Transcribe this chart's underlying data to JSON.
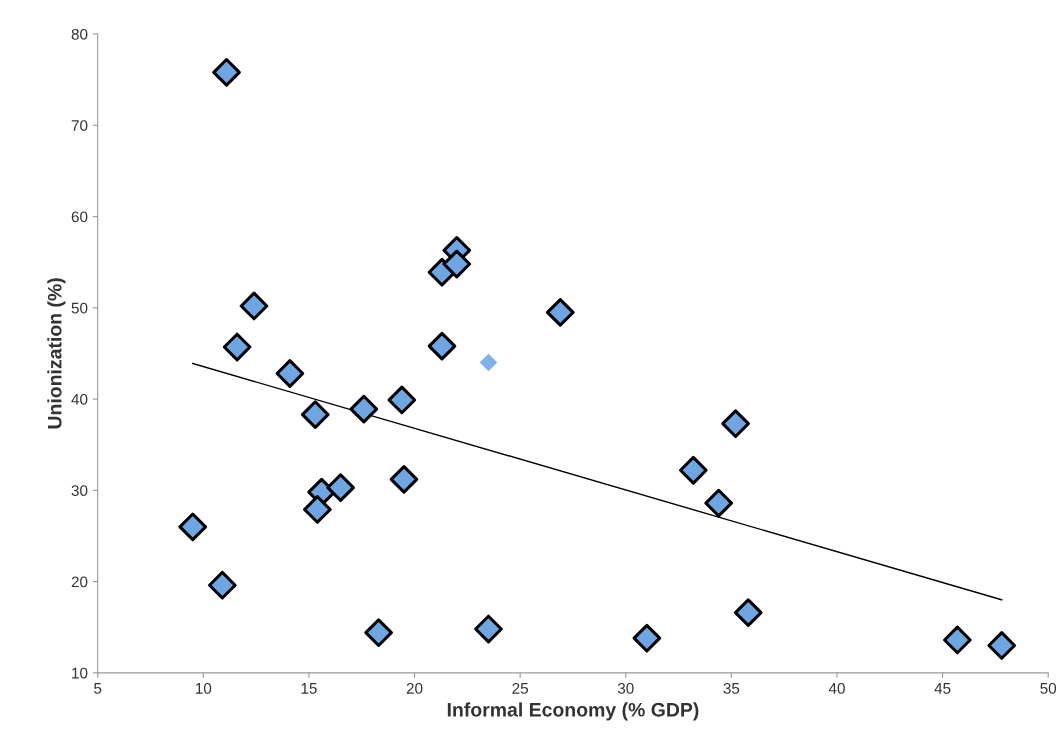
{
  "chart_data": {
    "type": "scatter",
    "xlabel": "Informal Economy (% GDP)",
    "ylabel": "Unionization (%)",
    "xlim": [
      5,
      50
    ],
    "xticks": [
      5,
      10,
      15,
      20,
      25,
      30,
      35,
      40,
      45,
      50
    ],
    "ylim": [
      10,
      80
    ],
    "yticks": [
      10,
      20,
      30,
      40,
      50,
      60,
      70,
      80
    ],
    "grid": false,
    "marker": "diamond",
    "series": [
      {
        "color": "#6ea6e4",
        "x": [
          11.1,
          12.4,
          11.6,
          14.1,
          15.3,
          17.6,
          19.4,
          21.3,
          22.0,
          22.0,
          21.3,
          26.9,
          15.6,
          15.4,
          16.5,
          19.5,
          9.5,
          10.9,
          18.3,
          23.5,
          31.0,
          33.2,
          34.4,
          35.2,
          35.8,
          45.7,
          47.8
        ],
        "values": [
          75.8,
          50.2,
          45.7,
          42.8,
          38.3,
          38.9,
          39.9,
          53.9,
          56.3,
          54.8,
          45.8,
          49.5,
          29.8,
          27.9,
          30.3,
          31.2,
          26.0,
          19.6,
          14.4,
          14.8,
          13.8,
          32.2,
          28.6,
          37.3,
          16.6,
          13.6,
          13.0
        ]
      },
      {
        "color": "#7fb2ea",
        "x": [
          23.5
        ],
        "values": [
          44.0
        ]
      },
      {
        "type": "line",
        "color": "#000000",
        "marker": "none",
        "x": [
          9.5,
          47.8
        ],
        "values": [
          43.9,
          18.0
        ]
      }
    ]
  }
}
